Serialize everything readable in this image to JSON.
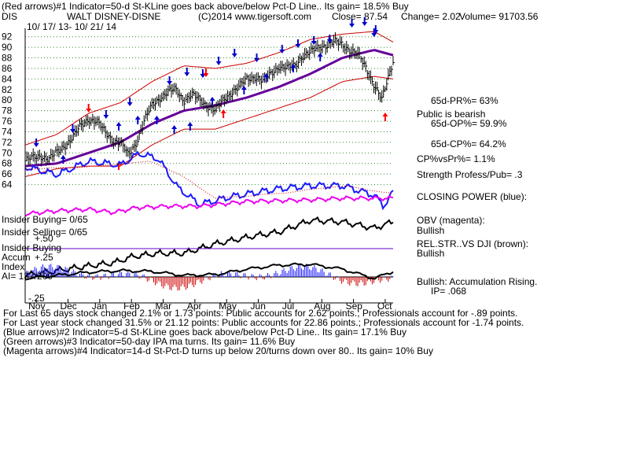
{
  "header": {
    "line1": "(Red arrows)#1 Indicator=50-d St-KLine goes back above/below Pct-D Line.. Its gain= 18.5% Buy",
    "ticker": "DIS",
    "company": "WALT DISNEY-DISNE",
    "copyright": "(C)2014 www.tigersoft.com",
    "close": "Close=  87.54",
    "change": "Change= 2.02",
    "volume": "Volume=  91703.56",
    "date_range": "10/ 17/ 13- 10/ 21/ 14"
  },
  "colors": {
    "price_bars": "#000000",
    "ma": "#660099",
    "band": "#cc0000",
    "closing_power": "#1a1aff",
    "obv": "#ee00ee",
    "relstr": "#000000",
    "accum_pos": "#1a1aff",
    "accum_neg": "#cc0000",
    "buy_arrow": "#ff0000",
    "sell_arrow": "#0000cc",
    "insider_line": "#6600cc",
    "grid": "#2e8b2e"
  },
  "right_panel": {
    "pr": "65d-PR%= 63%",
    "public": "Public is bearish",
    "op": "65d-OP%= 59.9%",
    "cp": "65d-CP%= 64.2%",
    "cpvspr": "CP%vsPr%=  1.1%",
    "strength": "Strength Profess/Pub= .3",
    "closing_power": "CLOSING POWER (blue):",
    "obv_label": "OBV (magenta):",
    "obv_value": "Bullish",
    "relstr_label": "REL.STR..VS DJI (brown):",
    "relstr_value": "Bullish",
    "accum_label": "Bullish: Accumulation Rising.",
    "ip": "IP=  .068"
  },
  "left_labels": {
    "insider_buying": "Insider Buying= 0/65",
    "insider_selling": "Insider Selling= 0/65",
    "insider_buying2": "Insider Buying",
    "accum": "Accum",
    "accum_tick": "+.25",
    "index": "Index",
    "ai": "AI= 137/200",
    "accum_low_tick": "-.25",
    "overlap_tick": "+.50"
  },
  "footer": {
    "line1": "For Last 65 days stock changed  2.1% or  1.73 points:  Public accounts for  2.62 points.;  Professionals account for -.89 points.",
    "line2": "For Last year stock changed  31.5% or  21.12 points:  Public accounts for  22.86 points.;  Professionals account for -1.74 points.",
    "line3": "(Blue arrows)#2 Indicator=5-d St-KLine goes back above/below Pct-D Line.. Its gain= 17.1% Buy",
    "line4": "(Green arrows)#3 Indicator=50-day IPA ma turns. Its gain= 11.6% Buy",
    "line5": "(Magenta arrows)#4 Indicator=14-d St-Pct-D turns up below 20/turns down over 80.. Its gain= 10% Buy"
  },
  "chart_data": {
    "type": "line",
    "title": "WALT DISNEY-DISNE",
    "xlabel": "",
    "ylabel": "",
    "ylim": [
      62,
      93
    ],
    "yticks": [
      92,
      90,
      88,
      86,
      84,
      82,
      80,
      78,
      76,
      74,
      72,
      70,
      68,
      66,
      64
    ],
    "months": [
      "Nov",
      "Dec",
      "Jan",
      "Feb",
      "Mar",
      "Apr",
      "May",
      "Jun",
      "Jul",
      "Aug",
      "Sep",
      "Oct"
    ],
    "grid": true,
    "series": [
      {
        "kind": "price_close",
        "x": [
          0,
          0.25,
          0.5,
          0.75,
          1,
          1.25,
          1.5,
          1.75,
          2,
          2.25,
          2.5,
          2.75,
          3,
          3.25,
          3.5,
          3.75,
          4,
          4.25,
          4.5,
          4.75,
          5,
          5.25,
          5.5,
          5.75,
          6,
          6.25,
          6.5,
          6.75,
          7,
          7.25,
          7.5,
          7.75,
          8,
          8.25,
          8.5,
          8.75,
          9,
          9.25,
          9.5,
          9.75,
          10,
          10.25,
          10.5,
          10.75,
          11,
          11.25,
          11.6
        ],
        "values": [
          68.5,
          69.0,
          69.5,
          68.8,
          70.0,
          71.5,
          73.0,
          75.0,
          76.5,
          76.0,
          74.0,
          72.5,
          72.0,
          69.5,
          72.0,
          76.0,
          79.0,
          80.5,
          81.5,
          82.0,
          80.0,
          81.0,
          80.0,
          79.0,
          78.0,
          80.0,
          81.5,
          82.5,
          84.0,
          84.5,
          83.5,
          85.0,
          86.5,
          86.0,
          86.5,
          88.5,
          89.0,
          90.0,
          90.5,
          91.0,
          90.5,
          89.5,
          88.5,
          86.0,
          83.0,
          80.0,
          87.54
        ]
      },
      {
        "kind": "moving_average_50d",
        "x": [
          0,
          1,
          2,
          3,
          4,
          5,
          6,
          7,
          8,
          9,
          10,
          11,
          11.6
        ],
        "values": [
          67.5,
          68.0,
          70.0,
          72.0,
          75.5,
          78.0,
          79.0,
          80.5,
          82.5,
          85.0,
          88.0,
          89.5,
          88.5
        ]
      },
      {
        "kind": "band_upper",
        "x": [
          0,
          1,
          2,
          3,
          4,
          5,
          6,
          7,
          8,
          9,
          10,
          11,
          11.6
        ],
        "values": [
          71.5,
          73.5,
          77.5,
          79.5,
          83.5,
          86.5,
          86.0,
          87.0,
          89.0,
          91.5,
          92.5,
          93.0,
          91.0
        ]
      },
      {
        "kind": "band_lower",
        "x": [
          0,
          1,
          2,
          3,
          4,
          5,
          6,
          7,
          8,
          9,
          10,
          11,
          11.6
        ],
        "values": [
          65.5,
          67.0,
          67.5,
          67.5,
          71.5,
          74.5,
          74.5,
          76.5,
          78.5,
          80.5,
          83.5,
          84.5,
          84.0
        ]
      }
    ]
  }
}
